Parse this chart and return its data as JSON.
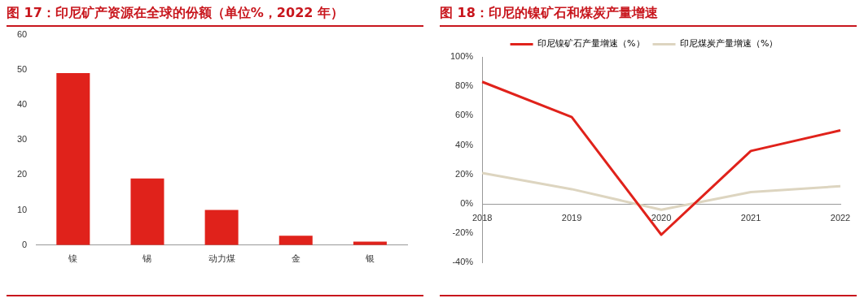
{
  "chart_data": [
    {
      "type": "bar",
      "title": "图 17：印尼矿产资源在全球的份额（单位%，2022 年）",
      "categories": [
        "镍",
        "锡",
        "动力煤",
        "金",
        "银"
      ],
      "values": [
        49,
        19,
        10,
        2.7,
        1
      ],
      "color": "#e0221b",
      "ylim": [
        0,
        60
      ],
      "yticks": [
        0,
        10,
        20,
        30,
        40,
        50,
        60
      ]
    },
    {
      "type": "line",
      "title": "图 18：印尼的镍矿石和煤炭产量增速",
      "categories": [
        "2018",
        "2019",
        "2020",
        "2021",
        "2022"
      ],
      "series": [
        {
          "name": "印尼镍矿石产量增速（%）",
          "color": "#e0221b",
          "values": [
            83,
            59,
            -21,
            36,
            50
          ]
        },
        {
          "name": "印尼煤炭产量增速（%）",
          "color": "#ddd5c0",
          "values": [
            21,
            10,
            -4,
            8,
            12
          ]
        }
      ],
      "legend": "top",
      "ylim": [
        -40,
        100
      ],
      "yticks": [
        {
          "value": -40,
          "label": "-40%"
        },
        {
          "value": -20,
          "label": "-20%"
        },
        {
          "value": 0,
          "label": "0%"
        },
        {
          "value": 20,
          "label": "20%"
        },
        {
          "value": 40,
          "label": "40%"
        },
        {
          "value": 60,
          "label": "60%"
        },
        {
          "value": 80,
          "label": "80%"
        },
        {
          "value": 100,
          "label": "100%"
        }
      ]
    }
  ]
}
